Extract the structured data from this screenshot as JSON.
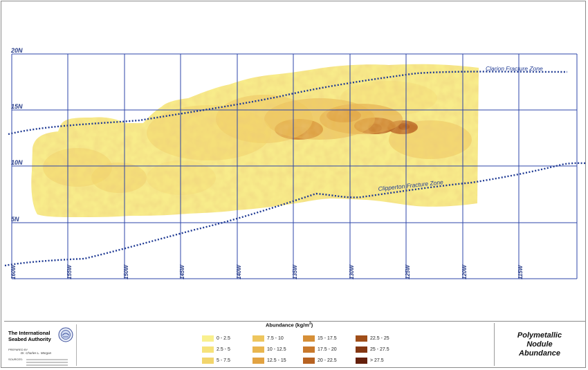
{
  "map": {
    "latitude_labels": [
      "20N",
      "15N",
      "10N",
      "5N"
    ],
    "longitude_labels": [
      "160W",
      "155W",
      "150W",
      "145W",
      "140W",
      "135W",
      "130W",
      "125W",
      "120W",
      "115W"
    ],
    "zones": [
      {
        "name": "Clarion Fracture Zone"
      },
      {
        "name": "Clipperton Fracture Zone"
      }
    ],
    "colors": {
      "grid": "#2c45a8",
      "fracture_zone": "#1f3a93",
      "low_abundance": "#f8ec8a",
      "high_abundance": "#5a1e08"
    }
  },
  "legend": {
    "title": "Abundance (kg/m",
    "title_sup": "2",
    "title_end": ")",
    "items": [
      {
        "label": "0 - 2.5",
        "color": "#f9f08e"
      },
      {
        "label": "2.5 - 5",
        "color": "#f6e27a"
      },
      {
        "label": "5 - 7.5",
        "color": "#f2d56c"
      },
      {
        "label": "7.5 - 10",
        "color": "#eec65e"
      },
      {
        "label": "10 - 12.5",
        "color": "#e9b64f"
      },
      {
        "label": "12.5 - 15",
        "color": "#e2a342"
      },
      {
        "label": "15 - 17.5",
        "color": "#d68f37"
      },
      {
        "label": "17.5 - 20",
        "color": "#c9792c"
      },
      {
        "label": "20 - 22.5",
        "color": "#b76322"
      },
      {
        "label": "22.5 - 25",
        "color": "#a04e19"
      },
      {
        "label": "25 - 27.5",
        "color": "#843712"
      },
      {
        "label": "> 27.5",
        "color": "#64200b"
      }
    ]
  },
  "org": {
    "name_line1": "The International",
    "name_line2": "Seabed Authority",
    "prepared_by": "PREPARED BY",
    "author": "Dr. Charles L. Morgan",
    "sources": "SOURCES:"
  },
  "title": {
    "line1": "Polymetallic",
    "line2": "Nodule",
    "line3": "Abundance"
  }
}
